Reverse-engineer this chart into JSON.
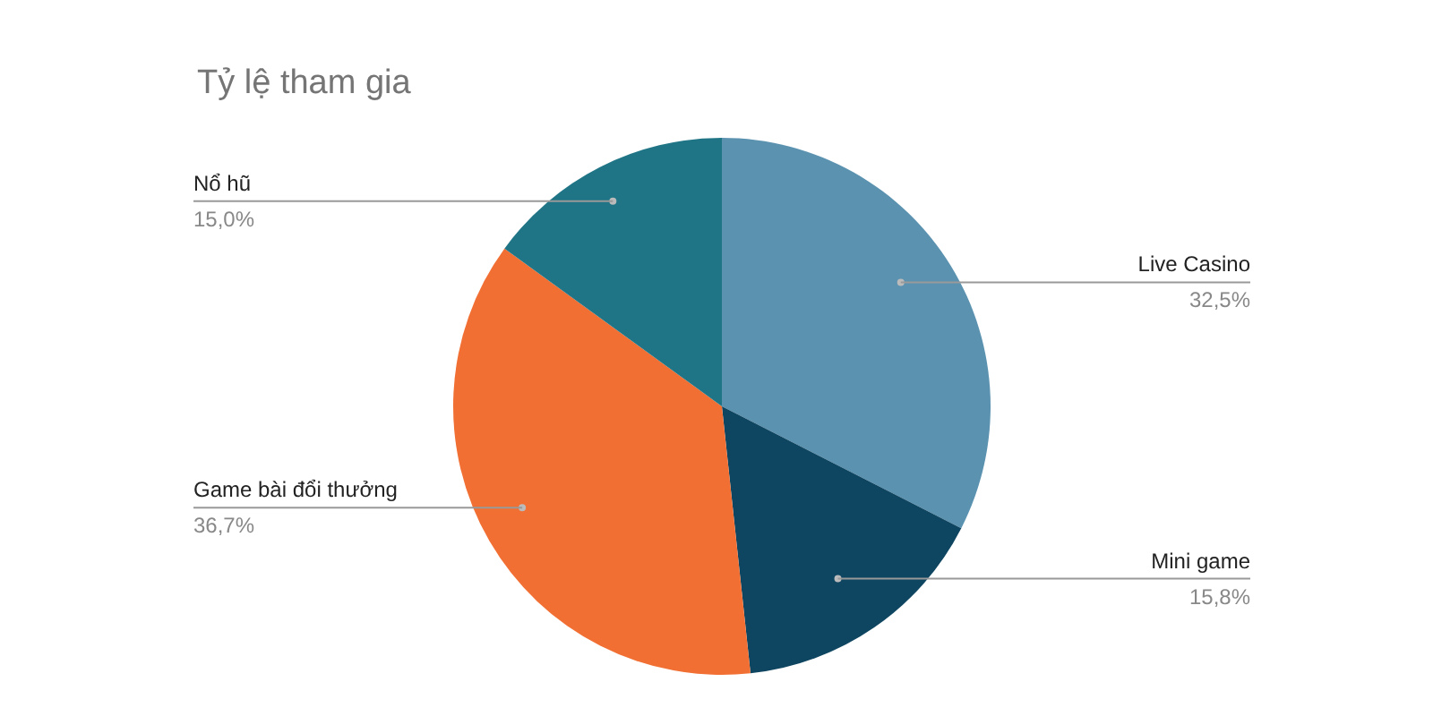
{
  "chart_data": {
    "type": "pie",
    "title": "Tỷ lệ tham gia",
    "categories": [
      "Live Casino",
      "Mini game",
      "Game bài đổi thưởng",
      "Nổ hũ"
    ],
    "values": [
      32.5,
      15.8,
      36.7,
      15.0
    ],
    "value_labels": [
      "32,5%",
      "15,8%",
      "36,7%",
      "15,0%"
    ],
    "colors": [
      "#5b92b0",
      "#0e4560",
      "#f26f33",
      "#1f7585"
    ]
  }
}
